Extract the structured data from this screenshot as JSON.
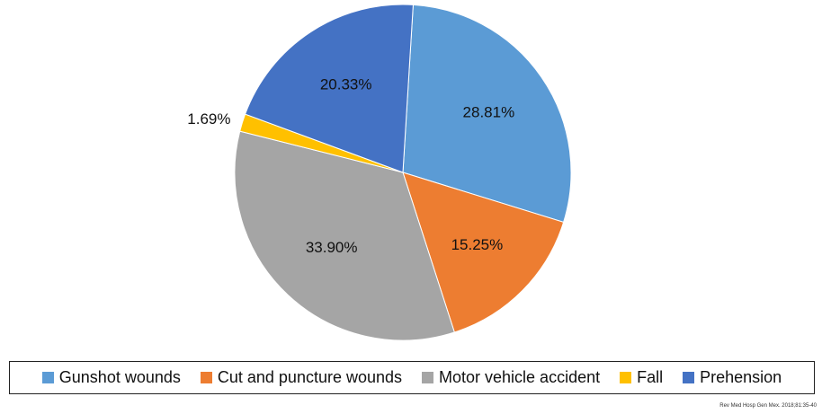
{
  "chart_data": {
    "type": "pie",
    "categories": [
      "Gunshot wounds",
      "Cut and puncture wounds",
      "Motor vehicle accident",
      "Fall",
      "Prehension"
    ],
    "values": [
      28.81,
      15.25,
      33.9,
      1.69,
      20.33
    ],
    "value_labels": [
      "28.81%",
      "15.25%",
      "33.90%",
      "1.69%",
      "20.33%"
    ],
    "colors": [
      "#5b9bd5",
      "#ed7d31",
      "#a5a5a5",
      "#ffc000",
      "#4472c4"
    ],
    "legend": "bottom",
    "source": "Rev Med Hosp Gen Mex. 2018;81:35-40"
  }
}
